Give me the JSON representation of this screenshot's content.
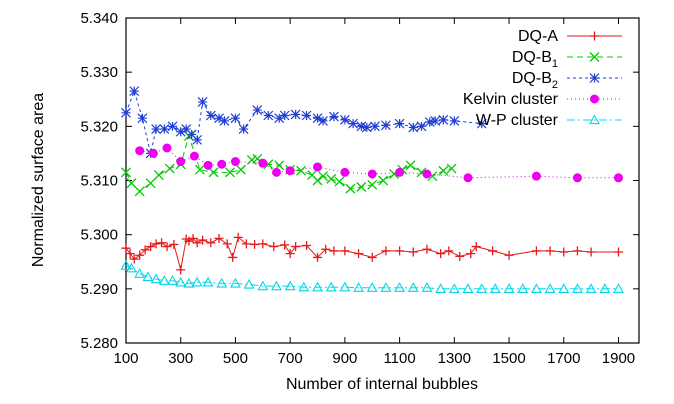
{
  "chart_data": {
    "type": "line",
    "title": "",
    "xlabel": "Number of internal bubbles",
    "ylabel": "Normalized surface area",
    "xlim": [
      100,
      1975
    ],
    "ylim": [
      5.28,
      5.34
    ],
    "xticks": [
      100,
      300,
      500,
      700,
      900,
      1100,
      1300,
      1500,
      1700,
      1900
    ],
    "xtick_labels": [
      "100",
      "300",
      "500",
      "700",
      "900",
      "1100",
      "1300",
      "1500",
      "1700",
      "1900"
    ],
    "yticks": [
      5.28,
      5.29,
      5.3,
      5.31,
      5.32,
      5.33,
      5.34
    ],
    "ytick_labels": [
      "5.280",
      "5.290",
      "5.300",
      "5.310",
      "5.320",
      "5.330",
      "5.340"
    ],
    "grid": false,
    "legend_position": "top-right",
    "series": [
      {
        "name": "DQ-A",
        "name_sub": "",
        "color": "#e41a1c",
        "dash": "",
        "marker": "plus",
        "x": [
          100,
          115,
          130,
          150,
          170,
          190,
          210,
          230,
          250,
          275,
          300,
          320,
          330,
          345,
          360,
          380,
          410,
          440,
          470,
          490,
          510,
          540,
          570,
          600,
          640,
          680,
          700,
          720,
          760,
          800,
          830,
          860,
          900,
          950,
          1000,
          1050,
          1100,
          1150,
          1200,
          1250,
          1280,
          1320,
          1360,
          1380,
          1440,
          1500,
          1600,
          1650,
          1700,
          1750,
          1800,
          1900
        ],
        "y": [
          5.2975,
          5.2965,
          5.2955,
          5.2962,
          5.2972,
          5.2978,
          5.2983,
          5.2985,
          5.2978,
          5.2982,
          5.2935,
          5.2992,
          5.2988,
          5.2993,
          5.2985,
          5.299,
          5.2985,
          5.2993,
          5.2983,
          5.2958,
          5.2995,
          5.2983,
          5.2982,
          5.2983,
          5.2978,
          5.2981,
          5.2965,
          5.2978,
          5.298,
          5.2958,
          5.2973,
          5.297,
          5.297,
          5.2965,
          5.2958,
          5.297,
          5.297,
          5.2968,
          5.2973,
          5.2965,
          5.297,
          5.296,
          5.2965,
          5.2978,
          5.297,
          5.2962,
          5.297,
          5.297,
          5.2968,
          5.297,
          5.2968,
          5.2968
        ]
      },
      {
        "name": "DQ-B",
        "name_sub": "1",
        "color": "#00cc00",
        "dash": "6,4",
        "marker": "x",
        "x": [
          100,
          120,
          150,
          190,
          220,
          260,
          300,
          330,
          370,
          420,
          480,
          520,
          560,
          580,
          620,
          660,
          700,
          740,
          780,
          800,
          820,
          850,
          880,
          920,
          960,
          1000,
          1040,
          1080,
          1110,
          1140,
          1180,
          1220,
          1260,
          1290
        ],
        "y": [
          5.3115,
          5.3095,
          5.308,
          5.3095,
          5.311,
          5.3122,
          5.313,
          5.3182,
          5.312,
          5.3115,
          5.3115,
          5.312,
          5.3138,
          5.314,
          5.313,
          5.3128,
          5.312,
          5.3118,
          5.311,
          5.31,
          5.3108,
          5.3103,
          5.3098,
          5.3085,
          5.3088,
          5.3092,
          5.31,
          5.3112,
          5.312,
          5.3128,
          5.3115,
          5.3108,
          5.3118,
          5.3122
        ]
      },
      {
        "name": "DQ-B",
        "name_sub": "2",
        "color": "#1f3fd4",
        "dash": "3,3",
        "marker": "star",
        "x": [
          100,
          130,
          160,
          190,
          210,
          240,
          270,
          300,
          320,
          340,
          360,
          380,
          410,
          440,
          460,
          500,
          530,
          580,
          620,
          660,
          680,
          720,
          760,
          800,
          820,
          860,
          900,
          930,
          960,
          980,
          1010,
          1050,
          1100,
          1150,
          1180,
          1210,
          1230,
          1260,
          1300,
          1400
        ],
        "y": [
          5.3225,
          5.3265,
          5.3215,
          5.315,
          5.3195,
          5.3195,
          5.32,
          5.319,
          5.3195,
          5.3185,
          5.3175,
          5.3245,
          5.322,
          5.3215,
          5.321,
          5.3215,
          5.3195,
          5.323,
          5.322,
          5.3215,
          5.322,
          5.3222,
          5.322,
          5.3215,
          5.321,
          5.3218,
          5.3212,
          5.3205,
          5.32,
          5.3198,
          5.32,
          5.3202,
          5.3205,
          5.3198,
          5.32,
          5.3208,
          5.321,
          5.3212,
          5.321,
          5.3205
        ]
      },
      {
        "name": "Kelvin cluster",
        "name_sub": "",
        "color": "#ee00ee",
        "dash": "1,3",
        "marker": "circle",
        "x": [
          150,
          200,
          250,
          300,
          350,
          400,
          450,
          500,
          600,
          650,
          700,
          800,
          900,
          1000,
          1100,
          1200,
          1350,
          1600,
          1750,
          1900
        ],
        "y": [
          5.3155,
          5.315,
          5.316,
          5.3135,
          5.3145,
          5.3128,
          5.313,
          5.3135,
          5.3132,
          5.3115,
          5.3118,
          5.3125,
          5.3115,
          5.3112,
          5.3115,
          5.3112,
          5.3105,
          5.3108,
          5.3105,
          5.3105
        ]
      },
      {
        "name": "W-P cluster",
        "name_sub": "",
        "color": "#00d8e8",
        "dash": "8,3,2,3",
        "marker": "triangle",
        "x": [
          100,
          120,
          150,
          180,
          210,
          240,
          270,
          300,
          330,
          360,
          400,
          450,
          500,
          550,
          600,
          650,
          700,
          750,
          800,
          850,
          900,
          950,
          1000,
          1050,
          1100,
          1150,
          1200,
          1250,
          1300,
          1350,
          1400,
          1450,
          1500,
          1550,
          1600,
          1650,
          1700,
          1750,
          1800,
          1850,
          1900
        ],
        "y": [
          5.2943,
          5.2938,
          5.2928,
          5.2922,
          5.2918,
          5.2915,
          5.2915,
          5.2912,
          5.291,
          5.2912,
          5.2912,
          5.291,
          5.291,
          5.2908,
          5.2905,
          5.2905,
          5.2905,
          5.2903,
          5.2903,
          5.2903,
          5.2903,
          5.2902,
          5.2902,
          5.2902,
          5.2902,
          5.2902,
          5.2902,
          5.29,
          5.29,
          5.29,
          5.29,
          5.29,
          5.29,
          5.29,
          5.29,
          5.29,
          5.29,
          5.29,
          5.29,
          5.29,
          5.29
        ]
      }
    ]
  }
}
